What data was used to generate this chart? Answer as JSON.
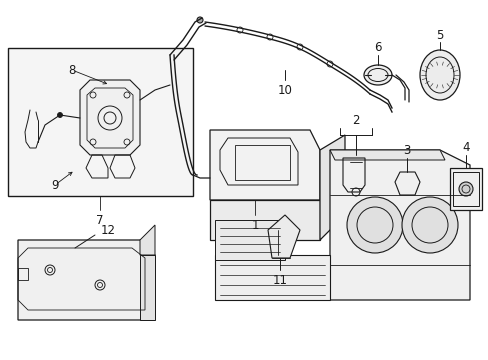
{
  "background_color": "#ffffff",
  "line_color": "#1a1a1a",
  "figsize": [
    4.89,
    3.6
  ],
  "dpi": 100,
  "label_fontsize": 8.5,
  "label_fontsize_sm": 7.5
}
